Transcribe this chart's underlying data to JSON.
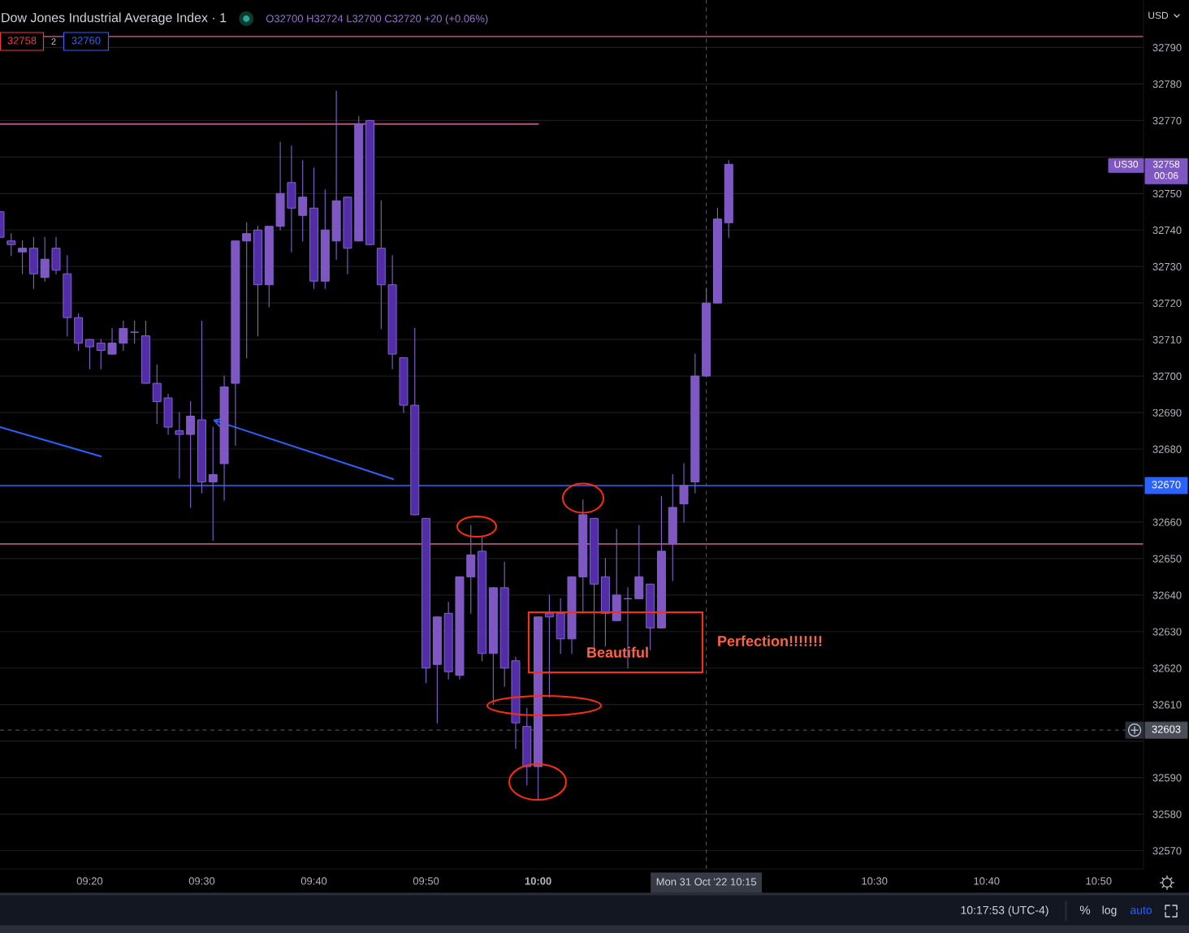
{
  "chart_data": {
    "type": "candlestick",
    "title": "Dow Jones Industrial Average Index · 1",
    "subtitle": "O32700 H32724 L32700 C32720 +20 (+0.06%)",
    "x": [
      "2022-10-31T09:12",
      "2022-10-31T09:13",
      "2022-10-31T09:14",
      "2022-10-31T09:15",
      "2022-10-31T09:16",
      "2022-10-31T09:17",
      "2022-10-31T09:18",
      "2022-10-31T09:19",
      "2022-10-31T09:20",
      "2022-10-31T09:21",
      "2022-10-31T09:22",
      "2022-10-31T09:23",
      "2022-10-31T09:24",
      "2022-10-31T09:25",
      "2022-10-31T09:26",
      "2022-10-31T09:27",
      "2022-10-31T09:28",
      "2022-10-31T09:29",
      "2022-10-31T09:30",
      "2022-10-31T09:31",
      "2022-10-31T09:32",
      "2022-10-31T09:33",
      "2022-10-31T09:34",
      "2022-10-31T09:35",
      "2022-10-31T09:36",
      "2022-10-31T09:37",
      "2022-10-31T09:38",
      "2022-10-31T09:39",
      "2022-10-31T09:40",
      "2022-10-31T09:41",
      "2022-10-31T09:42",
      "2022-10-31T09:43",
      "2022-10-31T09:44",
      "2022-10-31T09:45",
      "2022-10-31T09:46",
      "2022-10-31T09:47",
      "2022-10-31T09:48",
      "2022-10-31T09:49",
      "2022-10-31T09:50",
      "2022-10-31T09:51",
      "2022-10-31T09:52",
      "2022-10-31T09:53",
      "2022-10-31T09:54",
      "2022-10-31T09:55",
      "2022-10-31T09:56",
      "2022-10-31T09:57",
      "2022-10-31T09:58",
      "2022-10-31T09:59",
      "2022-10-31T10:00",
      "2022-10-31T10:01",
      "2022-10-31T10:02",
      "2022-10-31T10:03",
      "2022-10-31T10:04",
      "2022-10-31T10:05",
      "2022-10-31T10:06",
      "2022-10-31T10:07",
      "2022-10-31T10:08",
      "2022-10-31T10:09",
      "2022-10-31T10:10",
      "2022-10-31T10:11",
      "2022-10-31T10:12",
      "2022-10-31T10:13",
      "2022-10-31T10:14",
      "2022-10-31T10:15",
      "2022-10-31T10:16",
      "2022-10-31T10:17"
    ],
    "ohlc": [
      [
        32745,
        32745,
        32738,
        32738
      ],
      [
        32737,
        32739,
        32733,
        32736
      ],
      [
        32734,
        32737,
        32728,
        32735
      ],
      [
        32735,
        32738,
        32724,
        32728
      ],
      [
        32727,
        32738,
        32726,
        32732
      ],
      [
        32735,
        32738,
        32728,
        32729
      ],
      [
        32728,
        32733,
        32711,
        32716
      ],
      [
        32716,
        32717,
        32707,
        32709
      ],
      [
        32710,
        32710,
        32702,
        32708
      ],
      [
        32709,
        32710,
        32702,
        32707
      ],
      [
        32706,
        32713,
        32706,
        32709
      ],
      [
        32709,
        32715,
        32707,
        32713
      ],
      [
        32712,
        32715,
        32709,
        32712
      ],
      [
        32711,
        32715,
        32698,
        32698
      ],
      [
        32698,
        32703,
        32687,
        32693
      ],
      [
        32694,
        32695,
        32684,
        32686
      ],
      [
        32685,
        32690,
        32672,
        32684
      ],
      [
        32684,
        32693,
        32664,
        32689
      ],
      [
        32688,
        32715,
        32668,
        32671
      ],
      [
        32671,
        32686,
        32655,
        32673
      ],
      [
        32676,
        32700,
        32666,
        32697
      ],
      [
        32698,
        32737,
        32681,
        32737
      ],
      [
        32737,
        32742,
        32705,
        32739
      ],
      [
        32740,
        32741,
        32711,
        32725
      ],
      [
        32725,
        32741,
        32719,
        32741
      ],
      [
        32741,
        32764,
        32740,
        32750
      ],
      [
        32753,
        32763,
        32734,
        32746
      ],
      [
        32744,
        32759,
        32737,
        32749
      ],
      [
        32746,
        32757,
        32724,
        32726
      ],
      [
        32726,
        32751,
        32724,
        32740
      ],
      [
        32737,
        32778,
        32732,
        32748
      ],
      [
        32749,
        32749,
        32728,
        32735
      ],
      [
        32737,
        32771,
        32737,
        32769
      ],
      [
        32770,
        32770,
        32736,
        32736
      ],
      [
        32735,
        32748,
        32713,
        32725
      ],
      [
        32725,
        32733,
        32702,
        32706
      ],
      [
        32705,
        32705,
        32690,
        32692
      ],
      [
        32692,
        32713,
        32662,
        32662
      ],
      [
        32661,
        32661,
        32616,
        32620
      ],
      [
        32621,
        32634,
        32605,
        32634
      ],
      [
        32635,
        32638,
        32617,
        32619
      ],
      [
        32618,
        32645,
        32617,
        32645
      ],
      [
        32645,
        32659,
        32635,
        32651
      ],
      [
        32652,
        32656,
        32622,
        32624
      ],
      [
        32624,
        32642,
        32610,
        32642
      ],
      [
        32642,
        32649,
        32615,
        32620
      ],
      [
        32622,
        32623,
        32598,
        32605
      ],
      [
        32604,
        32609,
        32588,
        32593
      ],
      [
        32593,
        32634,
        32584,
        32634
      ],
      [
        32635,
        32640,
        32612,
        32634
      ],
      [
        32635,
        32639,
        32624,
        32628
      ],
      [
        32628,
        32645,
        32624,
        32645
      ],
      [
        32645,
        32666,
        32635,
        32662
      ],
      [
        32661,
        32661,
        32625,
        32643
      ],
      [
        32645,
        32650,
        32626,
        32635
      ],
      [
        32633,
        32658,
        32633,
        32640
      ],
      [
        32639,
        32642,
        32620,
        32639
      ],
      [
        32639,
        32659,
        32639,
        32645
      ],
      [
        32643,
        32643,
        32625,
        32631
      ],
      [
        32631,
        32667,
        32631,
        32652
      ],
      [
        32654,
        32673,
        32644,
        32664
      ],
      [
        32665,
        32676,
        32660,
        32670
      ],
      [
        32671,
        32706,
        32668,
        32700
      ],
      [
        32700,
        32724,
        32700,
        32720
      ],
      [
        32720,
        32746,
        32720,
        32743
      ],
      [
        32742,
        32759,
        32738,
        32758
      ]
    ],
    "colors": [
      "#512da8",
      "#512da8",
      "#7e57c2",
      "#512da8",
      "#7e57c2",
      "#512da8",
      "#512da8",
      "#512da8",
      "#512da8",
      "#512da8",
      "#7e57c2",
      "#7e57c2",
      "#7e57c2",
      "#512da8",
      "#512da8",
      "#512da8",
      "#512da8",
      "#7e57c2",
      "#512da8",
      "#7e57c2",
      "#7e57c2",
      "#7e57c2",
      "#7e57c2",
      "#512da8",
      "#7e57c2",
      "#7e57c2",
      "#512da8",
      "#7e57c2",
      "#512da8",
      "#7e57c2",
      "#7e57c2",
      "#512da8",
      "#7e57c2",
      "#512da8",
      "#512da8",
      "#512da8",
      "#512da8",
      "#512da8",
      "#512da8",
      "#7e57c2",
      "#512da8",
      "#7e57c2",
      "#7e57c2",
      "#512da8",
      "#7e57c2",
      "#512da8",
      "#512da8",
      "#512da8",
      "#7e57c2",
      "#512da8",
      "#512da8",
      "#7e57c2",
      "#7e57c2",
      "#512da8",
      "#512da8",
      "#7e57c2",
      "#7e57c2",
      "#7e57c2",
      "#512da8",
      "#7e57c2",
      "#7e57c2",
      "#7e57c2",
      "#7e57c2",
      "#7e57c2",
      "#7e57c2",
      "#7e57c2"
    ],
    "color": "#8462cc",
    "series": [
      {
        "type": "line",
        "color": "#b5537e",
        "x": [
          "2022-10-31T09:12",
          "2022-10-31T10:00"
        ],
        "values": [
          32769,
          32769
        ]
      },
      {
        "type": "line",
        "color": "#2962ff",
        "x": [
          "2022-10-31T09:12",
          "2022-10-31T09:21"
        ],
        "values": [
          32686,
          32678
        ]
      }
    ],
    "ref_lines": [
      {
        "axis": "y",
        "value": 32793,
        "color": "#b5537e"
      },
      {
        "axis": "y",
        "value": 32670,
        "label": "32670",
        "color": "#2962ff"
      },
      {
        "axis": "y",
        "value": 32654,
        "color": "#b5537e"
      },
      {
        "axis": "y",
        "value": 32603,
        "label": "32603",
        "color": "#4a4e59",
        "line_style": "dashed"
      },
      {
        "axis": "x",
        "value": "2022-10-31T10:15",
        "label": "Mon 31 Oct '22 10:15",
        "color": "#4a4e59",
        "line_style": "dashed"
      }
    ],
    "annotations": [
      "32758",
      "2",
      "32760",
      "US30",
      "32758",
      "00:06",
      "USD",
      "10:17:53 (UTC-4)",
      "%",
      "log",
      "auto",
      "Beautiful",
      "Perfection!!!!!!!"
    ],
    "xlim": [
      "2022-10-31T09:12",
      "2022-10-31T10:54"
    ],
    "ylim": [
      32565,
      32803
    ],
    "xticks": [
      {
        "value": "2022-10-31T09:20",
        "label": "09:20"
      },
      {
        "value": "2022-10-31T09:30",
        "label": "09:30"
      },
      {
        "value": "2022-10-31T09:40",
        "label": "09:40"
      },
      {
        "value": "2022-10-31T09:50",
        "label": "09:50"
      },
      {
        "value": "2022-10-31T10:00",
        "label": "10:00"
      },
      {
        "value": "2022-10-31T10:30",
        "label": "10:30"
      },
      {
        "value": "2022-10-31T10:40",
        "label": "10:40"
      },
      {
        "value": "2022-10-31T10:50",
        "label": "10:50"
      }
    ],
    "yticks": [
      32570,
      32580,
      32590,
      {
        "value": 32600,
        "label": null
      },
      32610,
      32620,
      32630,
      32640,
      32650,
      32660,
      {
        "value": 32670,
        "label": null
      },
      32680,
      32690,
      32700,
      32710,
      32720,
      32730,
      32740,
      32750,
      {
        "value": 32760,
        "label": null
      },
      32770,
      32780,
      32790
    ],
    "grid": "y"
  }
}
